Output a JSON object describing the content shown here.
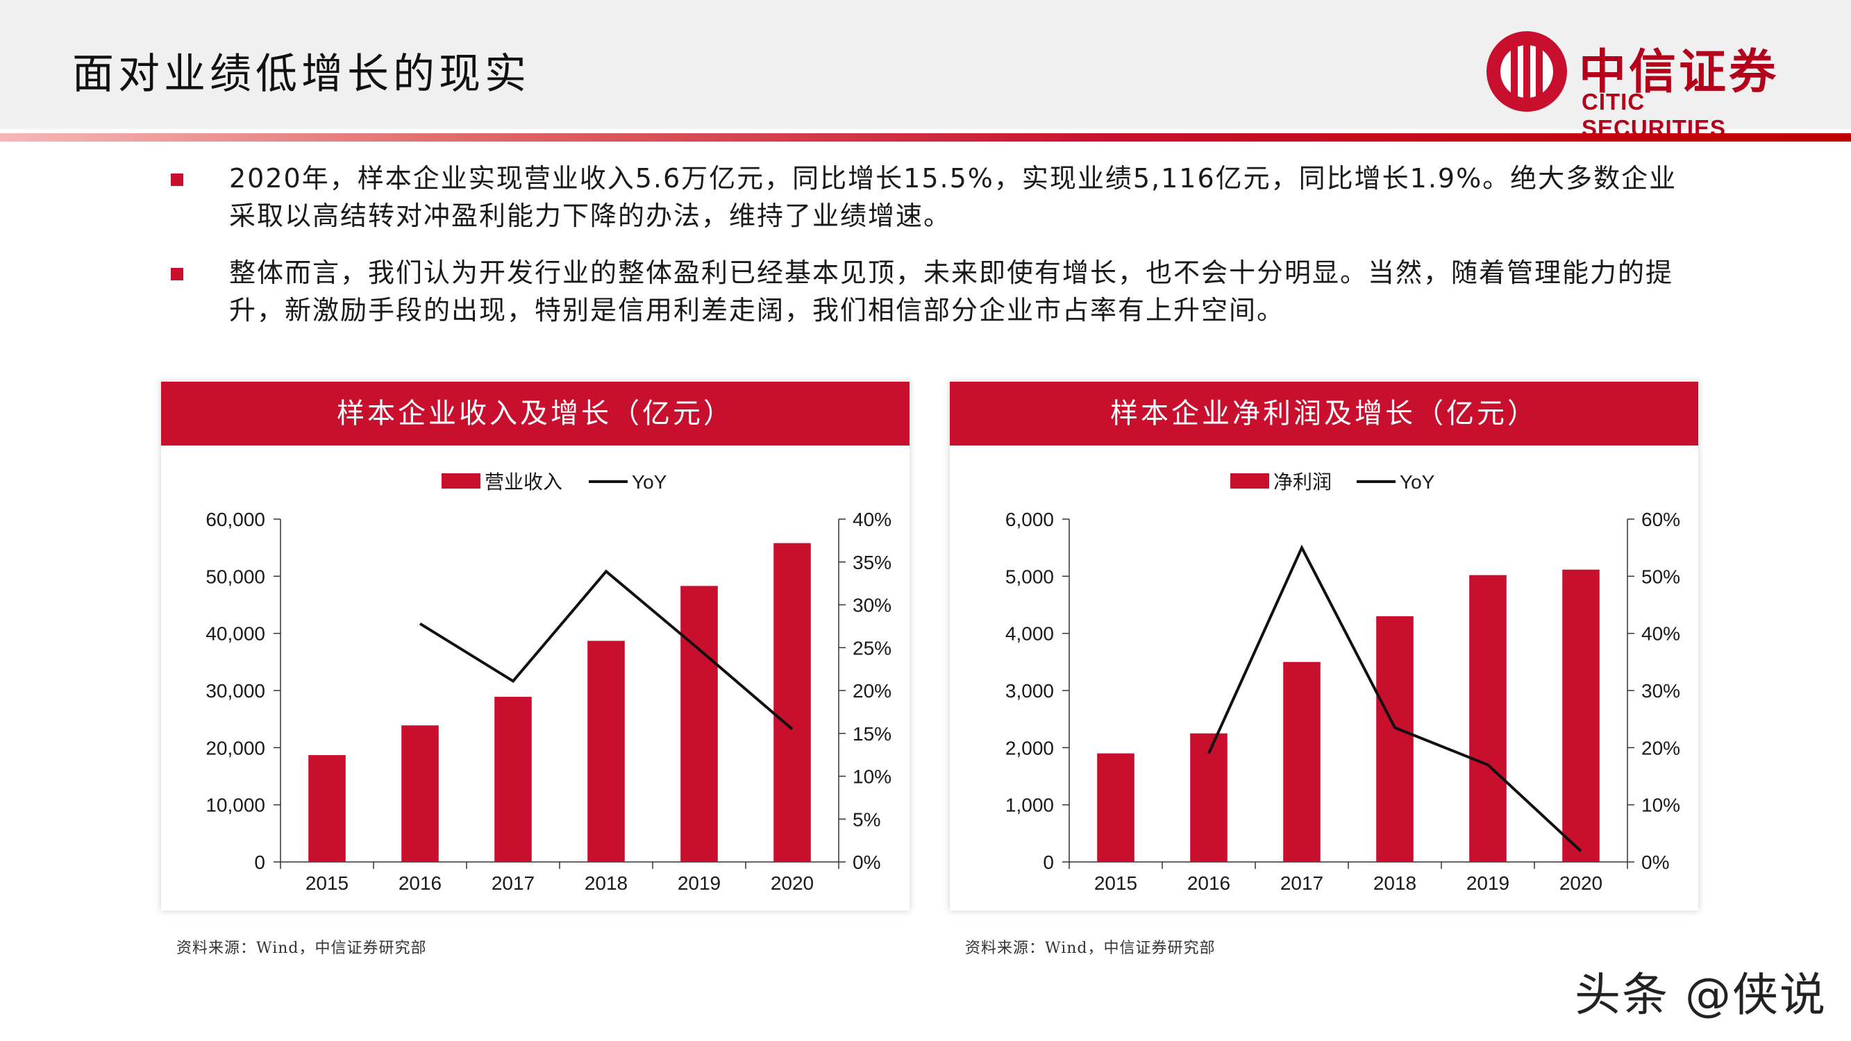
{
  "title": "面对业绩低增长的现实",
  "logo": {
    "cn": "中信证券",
    "en": "CITIC SECURITIES"
  },
  "bullets": [
    "2020年，样本企业实现营业收入5.6万亿元，同比增长15.5%，实现业绩5,116亿元，同比增长1.9%。绝大多数企业采取以高结转对冲盈利能力下降的办法，维持了业绩增速。",
    "整体而言，我们认为开发行业的整体盈利已经基本见顶，未来即使有增长，也不会十分明显。当然，随着管理能力的提升，新激励手段的出现，特别是信用利差走阔，我们相信部分企业市占率有上升空间。"
  ],
  "colors": {
    "accent": "#c8102e",
    "line": "#111111"
  },
  "chart_data": [
    {
      "type": "bar",
      "title": "样本企业收入及增长（亿元）",
      "categories": [
        "2015",
        "2016",
        "2017",
        "2018",
        "2019",
        "2020"
      ],
      "series": [
        {
          "name": "营业收入",
          "type": "bar",
          "axis": "left",
          "values": [
            18700,
            23900,
            28900,
            38700,
            48300,
            55800
          ]
        },
        {
          "name": "YoY",
          "type": "line",
          "axis": "right",
          "values": [
            null,
            27.8,
            21.1,
            33.9,
            24.8,
            15.5
          ]
        }
      ],
      "y_left": {
        "min": 0,
        "max": 60000,
        "ticks": [
          "0",
          "10,000",
          "20,000",
          "30,000",
          "40,000",
          "50,000",
          "60,000"
        ]
      },
      "y_right": {
        "min": 0,
        "max": 40,
        "ticks": [
          "0%",
          "5%",
          "10%",
          "15%",
          "20%",
          "25%",
          "30%",
          "35%",
          "40%"
        ]
      },
      "legend_position": "top-center",
      "source": "资料来源：Wind，中信证券研究部"
    },
    {
      "type": "bar",
      "title": "样本企业净利润及增长（亿元）",
      "categories": [
        "2015",
        "2016",
        "2017",
        "2018",
        "2019",
        "2020"
      ],
      "series": [
        {
          "name": "净利润",
          "type": "bar",
          "axis": "left",
          "values": [
            1900,
            2250,
            3500,
            4300,
            5020,
            5116
          ]
        },
        {
          "name": "YoY",
          "type": "line",
          "axis": "right",
          "values": [
            null,
            19,
            55,
            23.5,
            17,
            1.9
          ]
        }
      ],
      "y_left": {
        "min": 0,
        "max": 6000,
        "ticks": [
          "0",
          "1,000",
          "2,000",
          "3,000",
          "4,000",
          "5,000",
          "6,000"
        ]
      },
      "y_right": {
        "min": 0,
        "max": 60,
        "ticks": [
          "0%",
          "10%",
          "20%",
          "30%",
          "40%",
          "50%",
          "60%"
        ]
      },
      "legend_position": "top-center",
      "source": "资料来源：Wind，中信证券研究部"
    }
  ],
  "watermark": "头条 @侠说"
}
